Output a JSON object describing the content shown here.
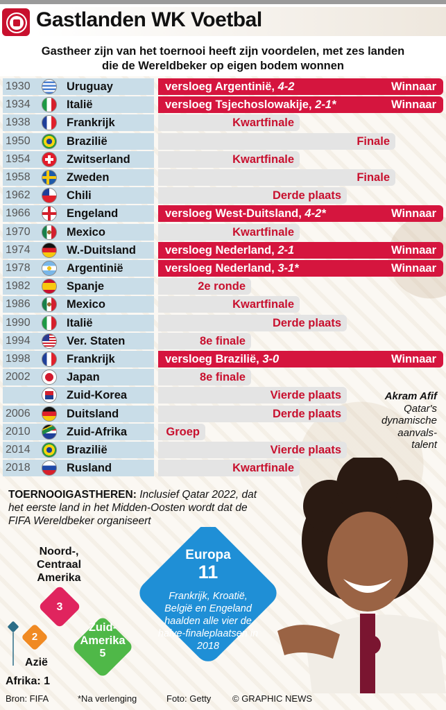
{
  "title": "Gastlanden WK Voetbal",
  "subtitle_line1": "Gastheer zijn van het toernooi heeft zijn voordelen, met zes landen",
  "subtitle_line2": "die de Wereldbeker op eigen bodem wonnen",
  "rows": [
    {
      "year": "1930",
      "country": "Uruguay",
      "flag": "uruguay-flag",
      "type": "win",
      "text": "versloeg Argentinië,",
      "score": "4-2",
      "winner": "Winnaar"
    },
    {
      "year": "1934",
      "country": "Italië",
      "flag": "italy-flag",
      "type": "win",
      "text": "versloeg Tsjechoslowakije,",
      "score": "2-1*",
      "winner": "Winnaar"
    },
    {
      "year": "1938",
      "country": "Frankrijk",
      "flag": "france-flag",
      "type": "stage",
      "text": "Kwartfinale"
    },
    {
      "year": "1950",
      "country": "Brazilië",
      "flag": "brazil-flag",
      "type": "stage",
      "text": "Finale"
    },
    {
      "year": "1954",
      "country": "Zwitserland",
      "flag": "switzerland-flag",
      "type": "stage",
      "text": "Kwartfinale"
    },
    {
      "year": "1958",
      "country": "Zweden",
      "flag": "sweden-flag",
      "type": "stage",
      "text": "Finale"
    },
    {
      "year": "1962",
      "country": "Chili",
      "flag": "chile-flag",
      "type": "stage",
      "text": "Derde plaats"
    },
    {
      "year": "1966",
      "country": "Engeland",
      "flag": "england-flag",
      "type": "win",
      "text": "versloeg West-Duitsland,",
      "score": "4-2*",
      "winner": "Winnaar"
    },
    {
      "year": "1970",
      "country": "Mexico",
      "flag": "mexico-flag",
      "type": "stage",
      "text": "Kwartfinale"
    },
    {
      "year": "1974",
      "country": "W.-Duitsland",
      "flag": "germany-flag",
      "type": "win",
      "text": "versloeg Nederland,",
      "score": "2-1",
      "winner": "Winnaar"
    },
    {
      "year": "1978",
      "country": "Argentinië",
      "flag": "argentina-flag",
      "type": "win",
      "text": "versloeg Nederland,",
      "score": "3-1*",
      "winner": "Winnaar"
    },
    {
      "year": "1982",
      "country": "Spanje",
      "flag": "spain-flag",
      "type": "stage",
      "text": "2e ronde"
    },
    {
      "year": "1986",
      "country": "Mexico",
      "flag": "mexico-flag",
      "type": "stage",
      "text": "Kwartfinale"
    },
    {
      "year": "1990",
      "country": "Italië",
      "flag": "italy-flag",
      "type": "stage",
      "text": "Derde plaats"
    },
    {
      "year": "1994",
      "country": "Ver. Staten",
      "flag": "usa-flag",
      "type": "stage",
      "text": "8e finale"
    },
    {
      "year": "1998",
      "country": "Frankrijk",
      "flag": "france-flag",
      "type": "win",
      "text": "versloeg Brazilië,",
      "score": "3-0",
      "winner": "Winnaar"
    },
    {
      "year": "2002",
      "country": "Japan",
      "flag": "japan-flag",
      "type": "stage",
      "text": "8e finale"
    },
    {
      "year": "",
      "country": "Zuid-Korea",
      "flag": "south-korea-flag",
      "type": "stage",
      "text": "Vierde plaats"
    },
    {
      "year": "2006",
      "country": "Duitsland",
      "flag": "germany-flag",
      "type": "stage",
      "text": "Derde plaats"
    },
    {
      "year": "2010",
      "country": "Zuid-Afrika",
      "flag": "south-africa-flag",
      "type": "stage",
      "text": "Groep"
    },
    {
      "year": "2014",
      "country": "Brazilië",
      "flag": "brazil-flag",
      "type": "stage",
      "text": "Vierde plaats"
    },
    {
      "year": "2018",
      "country": "Rusland",
      "flag": "russia-flag",
      "type": "stage",
      "text": "Kwartfinale"
    }
  ],
  "caption": {
    "name": "Akram Afif",
    "line1": "Qatar's",
    "line2": "dynamische",
    "line3": "aanvals-",
    "line4": "talent"
  },
  "intro": {
    "label": "TOERNOOIGASTHEREN:",
    "text": "Inclusief Qatar 2022, dat het eerste land in het Midden-Oosten wordt dat de FIFA Wereldbeker organiseert"
  },
  "regions": {
    "europa": {
      "name": "Europa",
      "count": "11",
      "note": "Frankrijk, Kroatië, België en Engeland haalden alle vier de halve-finaleplaatsen in 2018"
    },
    "ncamerika": {
      "name": "Noord-, Centraal Amerika",
      "count": "3"
    },
    "zamerika": {
      "name": "Zuid- Amerika",
      "count": "5"
    },
    "azie": {
      "name": "Azië",
      "count": "2"
    },
    "afrika": {
      "name": "Afrika: 1"
    }
  },
  "footer": {
    "source": "Bron: FIFA",
    "note": "*Na verlenging",
    "photo": "Foto: Getty",
    "credit": "© GRAPHIC NEWS"
  },
  "colors": {
    "red": "#d5153e",
    "blue": "#1f8fd6",
    "pink": "#e0245e",
    "green": "#4fb848",
    "orange": "#f08a23",
    "teal": "#2d6e88",
    "rowblue": "#c9dde8",
    "grey": "#e4e4e4"
  }
}
